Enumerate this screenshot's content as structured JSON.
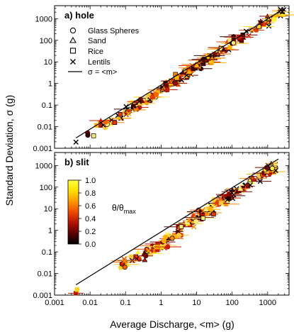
{
  "chart_data": [
    {
      "type": "scatter",
      "panel_label": "a) hole",
      "xscale": "log",
      "yscale": "log",
      "xlim": [
        0.001,
        4000
      ],
      "ylim": [
        0.001,
        4000
      ],
      "xticks": [
        "0.001",
        "0.01",
        "0.1",
        "1",
        "10",
        "100",
        "1000"
      ],
      "yticks": [
        "0.001",
        "0.01",
        "0.1",
        "1",
        "10",
        "100",
        "1000"
      ],
      "legend": {
        "placement": "top-left",
        "entries": [
          {
            "label": "Glass Spheres",
            "marker": "circle"
          },
          {
            "label": "Sand",
            "marker": "triangle"
          },
          {
            "label": "Rice",
            "marker": "square"
          },
          {
            "label": "Lentils",
            "marker": "x"
          },
          {
            "label": "σ = <m>",
            "marker": "line"
          }
        ]
      },
      "reference_line": {
        "label": "σ = <m>",
        "x": [
          0.004,
          3000
        ],
        "y": [
          0.003,
          3000
        ]
      },
      "point_bands": [
        {
          "x_range": [
            0.004,
            0.02
          ],
          "sigma_ratio": 0.55,
          "count": 6
        },
        {
          "x_range": [
            0.02,
            0.1
          ],
          "sigma_ratio": 0.45,
          "count": 18
        },
        {
          "x_range": [
            0.1,
            1
          ],
          "sigma_ratio": 0.45,
          "count": 45
        },
        {
          "x_range": [
            1,
            10
          ],
          "sigma_ratio": 0.55,
          "count": 55
        },
        {
          "x_range": [
            10,
            100
          ],
          "sigma_ratio": 0.65,
          "count": 55
        },
        {
          "x_range": [
            100,
            3000
          ],
          "sigma_ratio": 0.75,
          "count": 45
        }
      ]
    },
    {
      "type": "scatter",
      "panel_label": "b) slit",
      "xscale": "log",
      "yscale": "log",
      "xlim": [
        0.001,
        4000
      ],
      "ylim": [
        0.001,
        4000
      ],
      "xticks": [
        "0.001",
        "0.01",
        "0.1",
        "1",
        "10",
        "100",
        "1000"
      ],
      "yticks": [
        "0.001",
        "0.01",
        "0.1",
        "1",
        "10",
        "100",
        "1000"
      ],
      "xlabel": "Average Discharge, <m>   (g)",
      "ylabel": "Standard Deviation, σ   (g)",
      "reference_line": {
        "label": "σ = <m>",
        "x": [
          0.004,
          2000
        ],
        "y": [
          0.003,
          2000
        ]
      },
      "point_bands": [
        {
          "x_range": [
            0.004,
            0.005
          ],
          "sigma_ratio": 0.45,
          "count": 2
        },
        {
          "x_range": [
            0.07,
            0.3
          ],
          "sigma_ratio": 0.3,
          "count": 14
        },
        {
          "x_range": [
            0.3,
            3
          ],
          "sigma_ratio": 0.22,
          "count": 45
        },
        {
          "x_range": [
            3,
            30
          ],
          "sigma_ratio": 0.35,
          "count": 55
        },
        {
          "x_range": [
            30,
            300
          ],
          "sigma_ratio": 0.45,
          "count": 50
        },
        {
          "x_range": [
            300,
            2000
          ],
          "sigma_ratio": 0.55,
          "count": 35
        }
      ],
      "colorbar": {
        "label": "θ/θmax",
        "ticks": [
          "1.0",
          "0.8",
          "0.6",
          "0.4",
          "0.2",
          "0.0"
        ],
        "range": [
          0.0,
          1.0
        ],
        "colors": [
          "#000000",
          "#5a0000",
          "#b41400",
          "#f04a00",
          "#ff9a00",
          "#ffe000",
          "#ffff40"
        ]
      }
    }
  ],
  "label_text": {
    "panel_a": "a) hole",
    "panel_b": "b) slit",
    "legend_glass": "Glass Spheres",
    "legend_sand": "Sand",
    "legend_rice": "Rice",
    "legend_lentils": "Lentils",
    "legend_line": "σ = <m>",
    "xlabel": "Average Discharge, <m>   (g)",
    "ylabel": "Standard Deviation, σ   (g)",
    "colorbar_theta": "θ/θ",
    "colorbar_max": "max"
  }
}
